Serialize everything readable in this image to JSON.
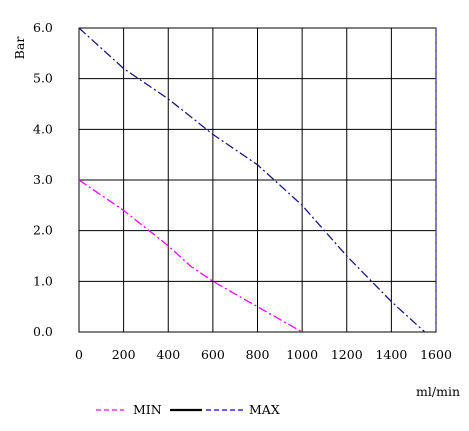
{
  "chart_data": {
    "type": "line",
    "ylabel": "Bar",
    "xlabel": "ml/min",
    "xlim": [
      0,
      1600
    ],
    "ylim": [
      0,
      6
    ],
    "grid": true,
    "legend_position": "bottom",
    "x_ticks": [
      "0",
      "200",
      "400",
      "600",
      "800",
      "1000",
      "1200",
      "1400",
      "1600"
    ],
    "y_ticks": [
      "0.0",
      "1.0",
      "2.0",
      "3.0",
      "4.0",
      "5.0",
      "6.0"
    ],
    "series": [
      {
        "name": "MIN",
        "color": "#ff00ff",
        "dash": "dash-dot",
        "x": [
          0,
          200,
          400,
          500,
          600,
          800,
          1000
        ],
        "y": [
          3.0,
          2.4,
          1.7,
          1.3,
          1.0,
          0.5,
          0.0
        ]
      },
      {
        "name": "MAX",
        "color": "#1a1a80",
        "dash": "dash-dot",
        "x": [
          0,
          200,
          400,
          600,
          800,
          1000,
          1200,
          1400,
          1550
        ],
        "y": [
          6.0,
          5.2,
          4.6,
          3.9,
          3.3,
          2.5,
          1.5,
          0.6,
          0.0
        ]
      }
    ],
    "legend": [
      {
        "label": "MIN",
        "color": "#ff00ff",
        "style": "dashed"
      },
      {
        "label": "",
        "color": "#000000",
        "style": "solid"
      },
      {
        "label": "MAX",
        "color": "#0000ff",
        "style": "dashed"
      }
    ]
  }
}
